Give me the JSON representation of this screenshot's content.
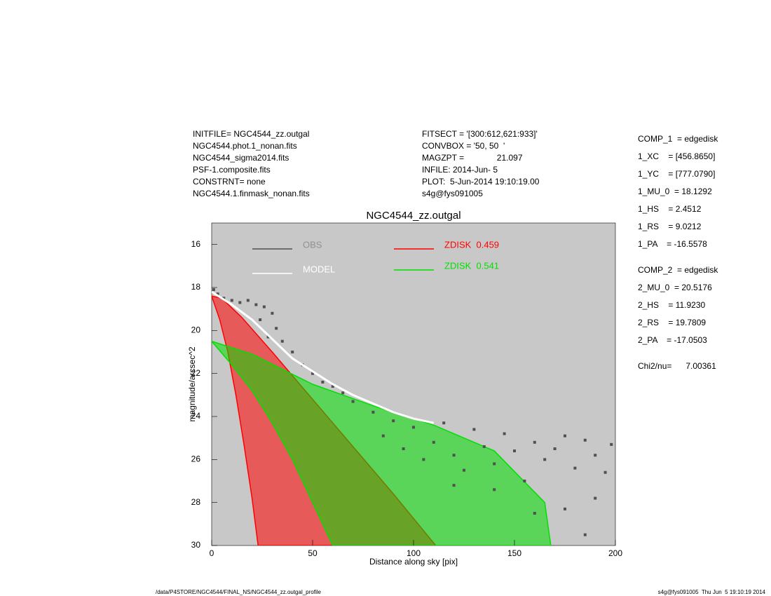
{
  "chart_data": {
    "type": "scatter",
    "title": "NGC4544_zz.outgal",
    "xlabel": "Distance along sky [pix]",
    "ylabel": "magnitude/arcsec^2",
    "xlim": [
      0,
      200
    ],
    "xticks": [
      0,
      50,
      100,
      150,
      200
    ],
    "ylim": [
      30,
      15
    ],
    "yticks": [
      16,
      18,
      20,
      22,
      24,
      26,
      28,
      30
    ],
    "background": "#c8c8c8",
    "series": [
      {
        "name": "ZDISK  0.459",
        "type": "area",
        "color": "#ff0000",
        "x": [
          0,
          4,
          8,
          12,
          16,
          20,
          23,
          111,
          90,
          70,
          50,
          30,
          15,
          5
        ],
        "values": [
          18.4,
          19.5,
          21.0,
          23.0,
          25.3,
          27.8,
          30,
          30,
          27.6,
          25.4,
          23.2,
          21.0,
          19.4,
          18.5
        ]
      },
      {
        "name": "ZDISK  0.541",
        "type": "area",
        "color": "#00e000",
        "x": [
          0,
          10,
          20,
          30,
          40,
          50,
          60,
          168,
          165,
          140,
          110,
          80,
          50,
          20
        ],
        "values": [
          20.5,
          21.6,
          22.8,
          24.3,
          26.0,
          28.0,
          30,
          30,
          28.0,
          25.6,
          24.4,
          23.5,
          22.5,
          21.1
        ]
      },
      {
        "name": "OBS",
        "type": "scatter",
        "color": "#505050",
        "x": [
          1,
          3,
          6,
          10,
          14,
          18,
          22,
          26,
          30,
          24,
          28,
          32,
          35,
          40,
          45,
          50,
          55,
          60,
          65,
          70,
          80,
          90,
          85,
          95,
          100,
          105,
          110,
          115,
          120,
          125,
          130,
          135,
          140,
          145,
          150,
          155,
          160,
          165,
          170,
          175,
          180,
          185,
          190,
          195,
          198,
          175,
          185,
          160,
          140,
          120,
          190
        ],
        "values": [
          18.1,
          18.3,
          18.5,
          18.6,
          18.7,
          18.6,
          18.8,
          18.9,
          19.2,
          19.5,
          20.3,
          19.9,
          20.5,
          21.0,
          21.6,
          22.0,
          22.4,
          22.6,
          22.9,
          23.3,
          23.8,
          24.2,
          24.9,
          25.5,
          24.5,
          26.0,
          25.2,
          24.3,
          25.8,
          26.5,
          24.6,
          25.4,
          26.2,
          24.8,
          25.6,
          27.0,
          25.2,
          26.0,
          25.5,
          24.9,
          26.4,
          25.1,
          25.8,
          26.6,
          25.3,
          28.3,
          29.5,
          28.5,
          27.4,
          27.2,
          27.8
        ]
      },
      {
        "name": "MODEL",
        "type": "line",
        "color": "#ffffff",
        "x": [
          0,
          10,
          20,
          30,
          40,
          50,
          60,
          70,
          80,
          90,
          100,
          110
        ],
        "values": [
          18.2,
          18.8,
          19.5,
          20.4,
          21.3,
          21.9,
          22.5,
          23.0,
          23.4,
          23.8,
          24.1,
          24.3
        ]
      }
    ],
    "info_left": [
      "INITFILE= NGC4544_zz.outgal",
      "NGC4544.phot.1_nonan.fits",
      "NGC4544_sigma2014.fits",
      "PSF-1.composite.fits",
      "CONSTRNT= none",
      "NGC4544.1.finmask_nonan.fits"
    ],
    "info_mid": [
      "FITSECT = '[300:612,621:933]'",
      "CONVBOX = '50, 50  '",
      "MAGZPT =              21.097",
      "INFILE: 2014-Jun- 5",
      "PLOT:  5-Jun-2014 19:10:19.00",
      "s4g@fys091005"
    ],
    "info_right": [
      "COMP_1  = edgedisk",
      "1_XC    = [456.8650]",
      "1_YC    = [777.0790]",
      "1_MU_0  = 18.1292",
      "1_HS    = 2.4512",
      "1_RS    = 9.0212",
      "1_PA    = -16.5578",
      "COMP_2  = edgedisk",
      "2_MU_0  = 20.5176",
      "2_HS    = 11.9230",
      "2_RS    = 19.7809",
      "2_PA    = -17.0503",
      "Chi2/nu=      7.00361"
    ],
    "footer_left": "/data/P4STORE/NGC4544/FINAL_NS/NGC4544_zz.outgal_profile",
    "footer_right": "s4g@fys091005  Thu Jun  5 19:10:19 2014"
  }
}
